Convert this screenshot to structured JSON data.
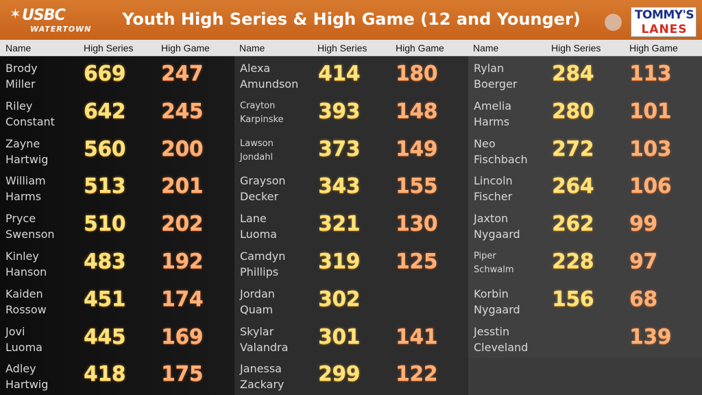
{
  "header": {
    "logo_main": "USBC",
    "logo_sub": "WATERTOWN",
    "title": "Youth High Series & High Game (12 and Younger)",
    "sponsor_line1": "TOMMY'S",
    "sponsor_line2": "LANES"
  },
  "columns": {
    "name": "Name",
    "series": "High Series",
    "game": "High Game"
  },
  "col1": [
    {
      "first": "Brody",
      "last": "Miller",
      "series": "669",
      "game": "247"
    },
    {
      "first": "Riley",
      "last": "Constant",
      "series": "642",
      "game": "245"
    },
    {
      "first": "Zayne",
      "last": "Hartwig",
      "series": "560",
      "game": "200"
    },
    {
      "first": "William",
      "last": "Harms",
      "series": "513",
      "game": "201"
    },
    {
      "first": "Pryce",
      "last": "Swenson",
      "series": "510",
      "game": "202"
    },
    {
      "first": "Kinley",
      "last": "Hanson",
      "series": "483",
      "game": "192"
    },
    {
      "first": "Kaiden",
      "last": "Rossow",
      "series": "451",
      "game": "174"
    },
    {
      "first": "Jovi",
      "last": "Luoma",
      "series": "445",
      "game": "169"
    },
    {
      "first": "Adley",
      "last": "Hartwig",
      "series": "418",
      "game": "175"
    }
  ],
  "col2": [
    {
      "first": "Alexa",
      "last": "Amundson",
      "series": "414",
      "game": "180"
    },
    {
      "first": "Crayton",
      "last": "Karpinske",
      "series": "393",
      "game": "148"
    },
    {
      "first": "Lawson",
      "last": "Jondahl",
      "series": "373",
      "game": "149"
    },
    {
      "first": "Grayson",
      "last": "Decker",
      "series": "343",
      "game": "155"
    },
    {
      "first": "Lane",
      "last": "Luoma",
      "series": "321",
      "game": "130"
    },
    {
      "first": "Camdyn",
      "last": "Phillips",
      "series": "319",
      "game": "125"
    },
    {
      "first": "Jordan",
      "last": "Quam",
      "series": "302",
      "game": ""
    },
    {
      "first": "Skylar",
      "last": "Valandra",
      "series": "301",
      "game": "141"
    },
    {
      "first": "Janessa",
      "last": "Zackary",
      "series": "299",
      "game": "122"
    }
  ],
  "col3": [
    {
      "first": "Rylan",
      "last": "Boerger",
      "series": "284",
      "game": "113"
    },
    {
      "first": "Amelia",
      "last": "Harms",
      "series": "280",
      "game": "101"
    },
    {
      "first": "Neo",
      "last": "Fischbach",
      "series": "272",
      "game": "103"
    },
    {
      "first": "Lincoln",
      "last": "Fischer",
      "series": "264",
      "game": "106"
    },
    {
      "first": "Jaxton",
      "last": "Nygaard",
      "series": "262",
      "game": "99"
    },
    {
      "first": "Piper",
      "last": "Schwalm",
      "series": "228",
      "game": "97"
    },
    {
      "first": "Korbin",
      "last": "Nygaard",
      "series": "156",
      "game": "68"
    },
    {
      "first": "Jesstin",
      "last": "Cleveland",
      "series": "",
      "game": "139"
    }
  ],
  "colors": {
    "header_bg": "#c8621a",
    "series_color": "#ffe27a",
    "game_color": "#ffb077"
  }
}
